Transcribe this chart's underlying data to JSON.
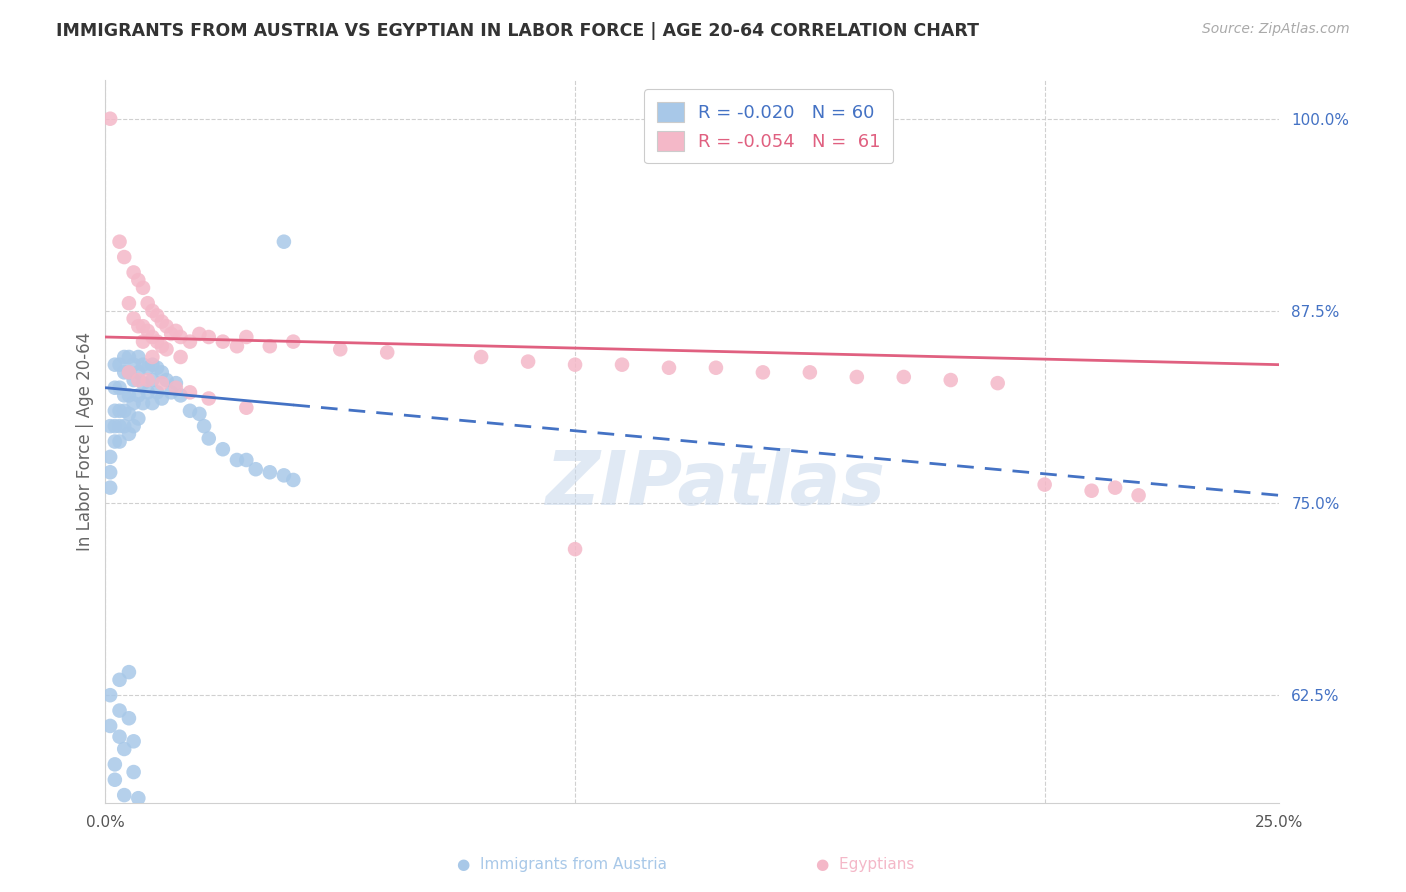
{
  "title": "IMMIGRANTS FROM AUSTRIA VS EGYPTIAN IN LABOR FORCE | AGE 20-64 CORRELATION CHART",
  "source": "Source: ZipAtlas.com",
  "ylabel": "In Labor Force | Age 20-64",
  "xlim": [
    0.0,
    0.25
  ],
  "ylim": [
    0.555,
    1.025
  ],
  "ytick_vals": [
    1.0,
    0.875,
    0.75,
    0.625
  ],
  "ytick_labels": [
    "100.0%",
    "87.5%",
    "75.0%",
    "62.5%"
  ],
  "xtick_vals": [
    0.0,
    0.05,
    0.1,
    0.15,
    0.2,
    0.25
  ],
  "xtick_labels": [
    "0.0%",
    "",
    "",
    "",
    "",
    "25.0%"
  ],
  "austria_color": "#a8c8e8",
  "egyptian_color": "#f4b8c8",
  "austria_line_color": "#4472c4",
  "egyptian_line_color": "#e06080",
  "watermark": "ZIPatlas",
  "austria_scatter_x": [
    0.001,
    0.001,
    0.001,
    0.001,
    0.002,
    0.002,
    0.002,
    0.002,
    0.002,
    0.003,
    0.003,
    0.003,
    0.003,
    0.003,
    0.004,
    0.004,
    0.004,
    0.004,
    0.004,
    0.005,
    0.005,
    0.005,
    0.005,
    0.005,
    0.006,
    0.006,
    0.006,
    0.006,
    0.007,
    0.007,
    0.007,
    0.007,
    0.008,
    0.008,
    0.008,
    0.009,
    0.009,
    0.01,
    0.01,
    0.01,
    0.011,
    0.011,
    0.012,
    0.012,
    0.013,
    0.014,
    0.015,
    0.016,
    0.018,
    0.02,
    0.021,
    0.022,
    0.025,
    0.028,
    0.03,
    0.032,
    0.035,
    0.038,
    0.04,
    0.038
  ],
  "austria_scatter_y": [
    0.8,
    0.78,
    0.77,
    0.76,
    0.84,
    0.825,
    0.81,
    0.8,
    0.79,
    0.84,
    0.825,
    0.81,
    0.8,
    0.79,
    0.845,
    0.835,
    0.82,
    0.81,
    0.8,
    0.845,
    0.835,
    0.82,
    0.808,
    0.795,
    0.84,
    0.83,
    0.815,
    0.8,
    0.845,
    0.835,
    0.82,
    0.805,
    0.84,
    0.828,
    0.815,
    0.838,
    0.822,
    0.84,
    0.83,
    0.815,
    0.838,
    0.822,
    0.835,
    0.818,
    0.83,
    0.822,
    0.828,
    0.82,
    0.81,
    0.808,
    0.8,
    0.792,
    0.785,
    0.778,
    0.778,
    0.772,
    0.77,
    0.768,
    0.765,
    0.92
  ],
  "austria_scatter_y_low": [
    0.625,
    0.605,
    0.58,
    0.57,
    0.635,
    0.615,
    0.598,
    0.59,
    0.56,
    0.64,
    0.61,
    0.595,
    0.575,
    0.558
  ],
  "austria_scatter_x_low": [
    0.001,
    0.001,
    0.002,
    0.002,
    0.003,
    0.003,
    0.003,
    0.004,
    0.004,
    0.005,
    0.005,
    0.006,
    0.006,
    0.007
  ],
  "egyptian_scatter_x": [
    0.001,
    0.003,
    0.004,
    0.005,
    0.006,
    0.006,
    0.007,
    0.007,
    0.008,
    0.008,
    0.008,
    0.009,
    0.009,
    0.01,
    0.01,
    0.01,
    0.011,
    0.011,
    0.012,
    0.012,
    0.013,
    0.013,
    0.014,
    0.015,
    0.016,
    0.016,
    0.018,
    0.02,
    0.022,
    0.025,
    0.028,
    0.03,
    0.035,
    0.04,
    0.05,
    0.06,
    0.08,
    0.09,
    0.1,
    0.11,
    0.12,
    0.13,
    0.14,
    0.15,
    0.16,
    0.17,
    0.18,
    0.19,
    0.2,
    0.21,
    0.215,
    0.22,
    0.005,
    0.007,
    0.009,
    0.012,
    0.015,
    0.018,
    0.022,
    0.03,
    0.1
  ],
  "egyptian_scatter_y": [
    1.0,
    0.92,
    0.91,
    0.88,
    0.9,
    0.87,
    0.895,
    0.865,
    0.89,
    0.865,
    0.855,
    0.88,
    0.862,
    0.875,
    0.858,
    0.845,
    0.872,
    0.855,
    0.868,
    0.852,
    0.865,
    0.85,
    0.86,
    0.862,
    0.858,
    0.845,
    0.855,
    0.86,
    0.858,
    0.855,
    0.852,
    0.858,
    0.852,
    0.855,
    0.85,
    0.848,
    0.845,
    0.842,
    0.84,
    0.84,
    0.838,
    0.838,
    0.835,
    0.835,
    0.832,
    0.832,
    0.83,
    0.828,
    0.762,
    0.758,
    0.76,
    0.755,
    0.835,
    0.83,
    0.83,
    0.828,
    0.825,
    0.822,
    0.818,
    0.812,
    0.72
  ]
}
